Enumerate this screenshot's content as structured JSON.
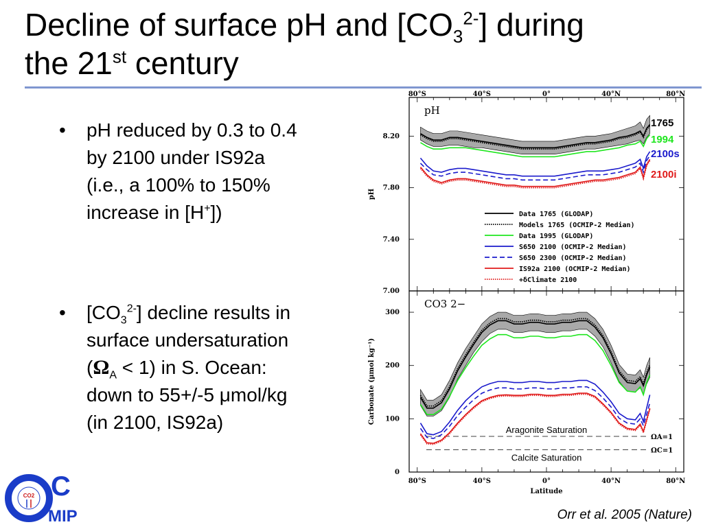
{
  "title": {
    "line1_a": "Decline of surface pH and [CO",
    "line1_sub": "3",
    "line1_sup": "2-",
    "line1_b": "] during",
    "line2_a": "the 21",
    "line2_sup": "st",
    "line2_b": " century"
  },
  "bullets": [
    {
      "symbol": "•",
      "line1": "pH reduced by 0.3 to 0.4",
      "line2": "by 2100 under IS92a",
      "line3": "(i.e., a 100% to 150%",
      "line4a": "increase in [H",
      "line4sup": "+",
      "line4b": "])"
    },
    {
      "symbol": "•",
      "line1a": "[CO",
      "line1sub": "3",
      "line1sup": "2-",
      "line1b": "] decline results in",
      "line2": "surface undersaturation",
      "line3a": "(",
      "line3omega": "Ω",
      "line3sub": "A",
      "line3b": " < 1) in S. Ocean:",
      "line4": "down to 55+/-5 μmol/kg",
      "line5": "(in 2100, IS92a)"
    }
  ],
  "citation": "Orr et al. 2005 (Nature)",
  "logo": {
    "letters_main": "C",
    "letters_sub": "MIP",
    "badge": "CO2"
  },
  "colors": {
    "accent_rule": "#7f96d0",
    "data_1765": "#000000",
    "data_1994": "#1ee61e",
    "s650_2100": "#1a1acc",
    "is92a_2100": "#e01a1a",
    "band": "#9a9a9a",
    "logo_blue": "#1a3cc8"
  },
  "chart_data": [
    {
      "type": "line",
      "title": "",
      "panel_label": "pH",
      "xlabel": "",
      "ylabel": "pH",
      "xlim": [
        -85,
        85
      ],
      "ylim": [
        7.0,
        8.5
      ],
      "x_ticks": [
        -80,
        -40,
        0,
        40,
        80
      ],
      "x_tick_labels": [
        "80°S",
        "40°S",
        "0°",
        "40°N",
        "80°N"
      ],
      "y_ticks": [
        7.0,
        7.4,
        7.8,
        8.2
      ],
      "y_tick_labels": [
        "7.00",
        "7.40",
        "7.80",
        "8.20"
      ],
      "x": [
        -78,
        -74,
        -70,
        -65,
        -60,
        -55,
        -50,
        -45,
        -40,
        -35,
        -30,
        -25,
        -20,
        -15,
        -10,
        -5,
        0,
        5,
        10,
        15,
        20,
        25,
        30,
        35,
        40,
        45,
        50,
        55,
        58,
        60,
        62,
        64
      ],
      "band": {
        "lower": [
          8.17,
          8.14,
          8.12,
          8.12,
          8.13,
          8.13,
          8.12,
          8.11,
          8.11,
          8.1,
          8.09,
          8.08,
          8.07,
          8.06,
          8.06,
          8.06,
          8.06,
          8.06,
          8.07,
          8.08,
          8.09,
          8.1,
          8.1,
          8.11,
          8.12,
          8.13,
          8.14,
          8.16,
          8.17,
          8.14,
          8.19,
          8.22
        ],
        "upper": [
          8.27,
          8.24,
          8.22,
          8.22,
          8.24,
          8.24,
          8.23,
          8.22,
          8.21,
          8.2,
          8.19,
          8.18,
          8.17,
          8.16,
          8.16,
          8.16,
          8.16,
          8.16,
          8.17,
          8.18,
          8.19,
          8.2,
          8.2,
          8.21,
          8.22,
          8.24,
          8.26,
          8.28,
          8.31,
          8.26,
          8.33,
          8.36
        ]
      },
      "series": [
        {
          "name": "Data 1765 (GLODAP)",
          "label": "1765",
          "style": "solid",
          "color": "#000000",
          "values": [
            8.22,
            8.19,
            8.17,
            8.17,
            8.19,
            8.19,
            8.18,
            8.17,
            8.16,
            8.15,
            8.14,
            8.13,
            8.12,
            8.11,
            8.11,
            8.11,
            8.11,
            8.11,
            8.12,
            8.13,
            8.14,
            8.15,
            8.15,
            8.16,
            8.17,
            8.19,
            8.2,
            8.22,
            8.24,
            8.2,
            8.26,
            8.29
          ]
        },
        {
          "name": "Models 1765 (OCMIP-2 Median)",
          "style": "dotted",
          "color": "#000000",
          "values": [
            8.21,
            8.18,
            8.16,
            8.16,
            8.18,
            8.18,
            8.17,
            8.16,
            8.15,
            8.14,
            8.13,
            8.12,
            8.11,
            8.1,
            8.1,
            8.1,
            8.1,
            8.1,
            8.11,
            8.12,
            8.13,
            8.14,
            8.14,
            8.15,
            8.16,
            8.18,
            8.19,
            8.21,
            8.23,
            8.19,
            8.25,
            8.28
          ]
        },
        {
          "name": "Data 1995 (GLODAP)",
          "label": "1994",
          "style": "solid",
          "color": "#1ee61e",
          "values": [
            8.15,
            8.12,
            8.1,
            8.1,
            8.11,
            8.11,
            8.11,
            8.1,
            8.09,
            8.08,
            8.07,
            8.06,
            8.05,
            8.04,
            8.04,
            8.04,
            8.04,
            8.04,
            8.05,
            8.06,
            8.07,
            8.08,
            8.08,
            8.09,
            8.1,
            8.11,
            8.13,
            8.14,
            8.16,
            8.12,
            8.18,
            8.21
          ]
        },
        {
          "name": "S650 2100 (OCMIP-2 Median)",
          "label": "2100s",
          "style": "solid",
          "color": "#1a1acc",
          "values": [
            8.03,
            7.97,
            7.93,
            7.92,
            7.94,
            7.95,
            7.95,
            7.94,
            7.93,
            7.92,
            7.91,
            7.9,
            7.9,
            7.89,
            7.89,
            7.89,
            7.89,
            7.89,
            7.9,
            7.91,
            7.92,
            7.93,
            7.93,
            7.93,
            7.94,
            7.95,
            7.97,
            7.99,
            8.02,
            7.95,
            8.04,
            8.08
          ]
        },
        {
          "name": "S650 2300 (OCMIP-2 Median)",
          "style": "dashed",
          "color": "#1a1acc",
          "values": [
            7.99,
            7.94,
            7.9,
            7.89,
            7.91,
            7.92,
            7.92,
            7.91,
            7.9,
            7.89,
            7.88,
            7.87,
            7.87,
            7.86,
            7.86,
            7.86,
            7.86,
            7.86,
            7.87,
            7.88,
            7.89,
            7.9,
            7.9,
            7.9,
            7.91,
            7.92,
            7.94,
            7.96,
            7.99,
            7.92,
            8.01,
            8.05
          ]
        },
        {
          "name": "IS92a 2100 (OCMIP-2 Median)",
          "label": "2100i",
          "style": "solid",
          "color": "#e01a1a",
          "values": [
            7.96,
            7.9,
            7.86,
            7.84,
            7.86,
            7.87,
            7.87,
            7.86,
            7.85,
            7.84,
            7.83,
            7.82,
            7.82,
            7.81,
            7.81,
            7.81,
            7.81,
            7.81,
            7.82,
            7.83,
            7.84,
            7.85,
            7.86,
            7.86,
            7.87,
            7.88,
            7.9,
            7.92,
            7.96,
            7.88,
            7.98,
            8.02
          ]
        },
        {
          "name": "+δClimate 2100",
          "style": "dotted",
          "color": "#e01a1a",
          "values": [
            7.95,
            7.89,
            7.85,
            7.83,
            7.85,
            7.86,
            7.86,
            7.85,
            7.84,
            7.83,
            7.82,
            7.81,
            7.81,
            7.8,
            7.8,
            7.8,
            7.8,
            7.8,
            7.81,
            7.82,
            7.83,
            7.84,
            7.85,
            7.85,
            7.86,
            7.87,
            7.89,
            7.91,
            7.95,
            7.87,
            7.97,
            8.01
          ]
        }
      ],
      "legend": [
        "Data 1765 (GLODAP)",
        "Models 1765 (OCMIP-2 Median)",
        "Data 1995 (GLODAP)",
        "S650 2100 (OCMIP-2 Median)",
        "S650 2300 (OCMIP-2 Median)",
        "IS92a 2100 (OCMIP-2 Median)",
        "+δClimate 2100"
      ],
      "legend_placement": "bottom-right",
      "side_labels": [
        "1765",
        "1994",
        "2100s",
        "2100i"
      ],
      "grid": false
    },
    {
      "type": "line",
      "title": "",
      "panel_label": "CO3 2−",
      "xlabel": "Latitude",
      "ylabel": "Carbonate (μmol kg⁻¹)",
      "xlim": [
        -85,
        85
      ],
      "ylim": [
        0,
        340
      ],
      "x_ticks": [
        -80,
        -40,
        0,
        40,
        80
      ],
      "x_tick_labels": [
        "80°S",
        "40°S",
        "0°",
        "40°N",
        "80°N"
      ],
      "y_ticks": [
        0,
        100,
        200,
        300
      ],
      "y_tick_labels": [
        "0",
        "100",
        "200",
        "300"
      ],
      "x": [
        -78,
        -74,
        -70,
        -65,
        -60,
        -55,
        -50,
        -45,
        -40,
        -35,
        -30,
        -25,
        -20,
        -15,
        -10,
        -5,
        0,
        5,
        10,
        15,
        20,
        25,
        30,
        35,
        40,
        45,
        50,
        55,
        58,
        60,
        62,
        64
      ],
      "band": {
        "lower": [
          125,
          105,
          105,
          115,
          140,
          175,
          200,
          225,
          245,
          260,
          268,
          268,
          262,
          262,
          265,
          265,
          262,
          262,
          265,
          265,
          268,
          268,
          255,
          235,
          205,
          170,
          152,
          150,
          158,
          145,
          165,
          178
        ],
        "upper": [
          155,
          135,
          135,
          145,
          172,
          205,
          232,
          255,
          278,
          292,
          300,
          300,
          294,
          294,
          297,
          297,
          294,
          294,
          297,
          297,
          300,
          300,
          288,
          268,
          238,
          202,
          184,
          182,
          192,
          178,
          200,
          215
        ]
      },
      "series": [
        {
          "name": "Data 1765 (GLODAP)",
          "style": "solid",
          "color": "#000000",
          "values": [
            140,
            120,
            120,
            130,
            156,
            190,
            216,
            240,
            262,
            276,
            284,
            284,
            278,
            278,
            281,
            281,
            278,
            278,
            281,
            281,
            284,
            284,
            272,
            252,
            222,
            186,
            168,
            166,
            175,
            162,
            182,
            197
          ]
        },
        {
          "name": "Models 1765 (OCMIP-2 Median)",
          "style": "dotted",
          "color": "#000000",
          "values": [
            144,
            124,
            124,
            134,
            160,
            194,
            220,
            244,
            266,
            280,
            288,
            288,
            282,
            282,
            285,
            285,
            282,
            282,
            285,
            285,
            288,
            288,
            276,
            256,
            226,
            190,
            172,
            170,
            179,
            166,
            186,
            201
          ]
        },
        {
          "name": "Data 1995 (GLODAP)",
          "style": "solid",
          "color": "#1ee61e",
          "values": [
            127,
            108,
            108,
            118,
            142,
            172,
            196,
            218,
            238,
            250,
            258,
            258,
            252,
            252,
            255,
            255,
            252,
            252,
            255,
            255,
            258,
            258,
            247,
            228,
            200,
            168,
            152,
            150,
            160,
            145,
            168,
            182
          ]
        },
        {
          "name": "S650 2100 (OCMIP-2 Median)",
          "style": "solid",
          "color": "#1a1acc",
          "values": [
            92,
            72,
            70,
            76,
            94,
            116,
            134,
            148,
            160,
            166,
            170,
            170,
            168,
            168,
            170,
            170,
            168,
            168,
            170,
            170,
            172,
            172,
            165,
            150,
            132,
            110,
            100,
            98,
            110,
            95,
            120,
            145
          ]
        },
        {
          "name": "S650 2300 (OCMIP-2 Median)",
          "style": "dashed",
          "color": "#1a1acc",
          "values": [
            82,
            65,
            63,
            70,
            86,
            106,
            122,
            136,
            148,
            154,
            158,
            158,
            156,
            156,
            158,
            158,
            156,
            156,
            158,
            158,
            160,
            160,
            153,
            139,
            122,
            101,
            92,
            90,
            100,
            87,
            108,
            130
          ]
        },
        {
          "name": "IS92a 2100 (OCMIP-2 Median)",
          "style": "solid",
          "color": "#e01a1a",
          "values": [
            72,
            55,
            54,
            60,
            74,
            92,
            108,
            122,
            134,
            140,
            144,
            145,
            144,
            144,
            146,
            146,
            144,
            144,
            146,
            146,
            148,
            148,
            142,
            128,
            112,
            92,
            82,
            80,
            90,
            76,
            98,
            120
          ]
        },
        {
          "name": "+δClimate 2100",
          "style": "dotted",
          "color": "#e01a1a",
          "values": [
            70,
            53,
            52,
            58,
            72,
            90,
            106,
            120,
            132,
            138,
            142,
            143,
            142,
            142,
            144,
            144,
            142,
            142,
            144,
            144,
            146,
            146,
            140,
            126,
            110,
            90,
            80,
            78,
            88,
            74,
            96,
            118
          ]
        }
      ],
      "reference_lines": [
        {
          "label": "Aragonite Saturation",
          "value": 67,
          "tag": "ΩA=1"
        },
        {
          "label": "Calcite Saturation",
          "value": 42,
          "tag": "ΩC=1"
        }
      ],
      "grid": false
    }
  ]
}
